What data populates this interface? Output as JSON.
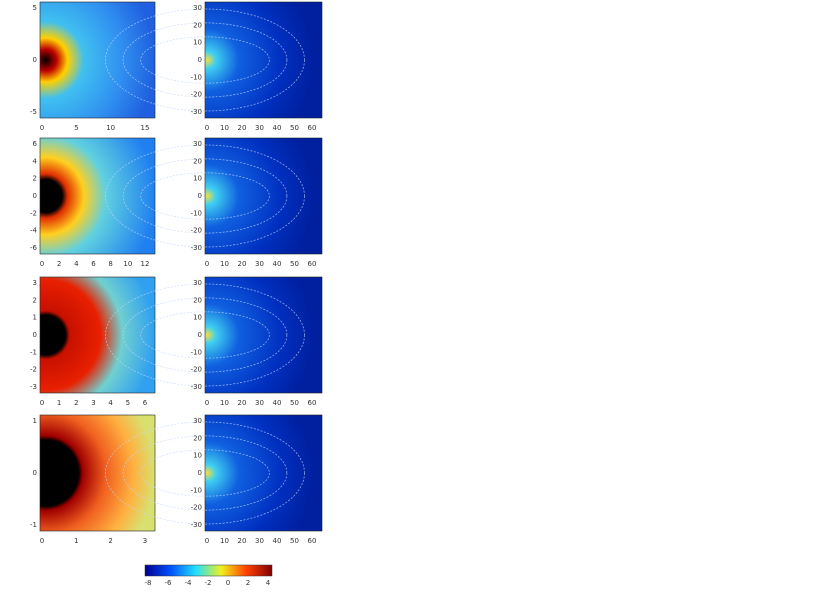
{
  "rows": [
    {
      "left": {
        "xticks": [
          "0",
          "5",
          "10",
          "15"
        ],
        "yticks": [
          "5",
          "0",
          "-5"
        ]
      },
      "right": {
        "xticks": [
          "0",
          "10",
          "20",
          "30",
          "40",
          "50",
          "60"
        ],
        "yticks": [
          "30",
          "20",
          "10",
          "0",
          "-10",
          "-20",
          "-30"
        ]
      }
    },
    {
      "left": {
        "xticks": [
          "0",
          "2",
          "4",
          "6",
          "8",
          "10",
          "12"
        ],
        "yticks": [
          "6",
          "4",
          "2",
          "0",
          "-2",
          "-4",
          "-6"
        ]
      },
      "right": {
        "xticks": [
          "0",
          "10",
          "20",
          "30",
          "40",
          "50",
          "60"
        ],
        "yticks": [
          "30",
          "20",
          "10",
          "0",
          "-10",
          "-20",
          "-30"
        ]
      }
    },
    {
      "left": {
        "xticks": [
          "0",
          "1",
          "2",
          "3",
          "4",
          "5",
          "6"
        ],
        "yticks": [
          "3",
          "2",
          "1",
          "0",
          "-1",
          "-2",
          "-3"
        ]
      },
      "right": {
        "xticks": [
          "0",
          "10",
          "20",
          "30",
          "40",
          "50",
          "60"
        ],
        "yticks": [
          "30",
          "20",
          "10",
          "0",
          "-10",
          "-20",
          "-30"
        ]
      }
    },
    {
      "left": {
        "xticks": [
          "0",
          "1",
          "2",
          "3"
        ],
        "yticks": [
          "1",
          "0",
          "-1"
        ]
      },
      "right": {
        "xticks": [
          "0",
          "10",
          "20",
          "30",
          "40",
          "50",
          "60"
        ],
        "yticks": [
          "30",
          "20",
          "10",
          "0",
          "-10",
          "-20",
          "-30"
        ]
      }
    }
  ],
  "colorbar": {
    "ticks": [
      "-8",
      "-6",
      "-4",
      "-2",
      "0",
      "2",
      "4"
    ]
  }
}
